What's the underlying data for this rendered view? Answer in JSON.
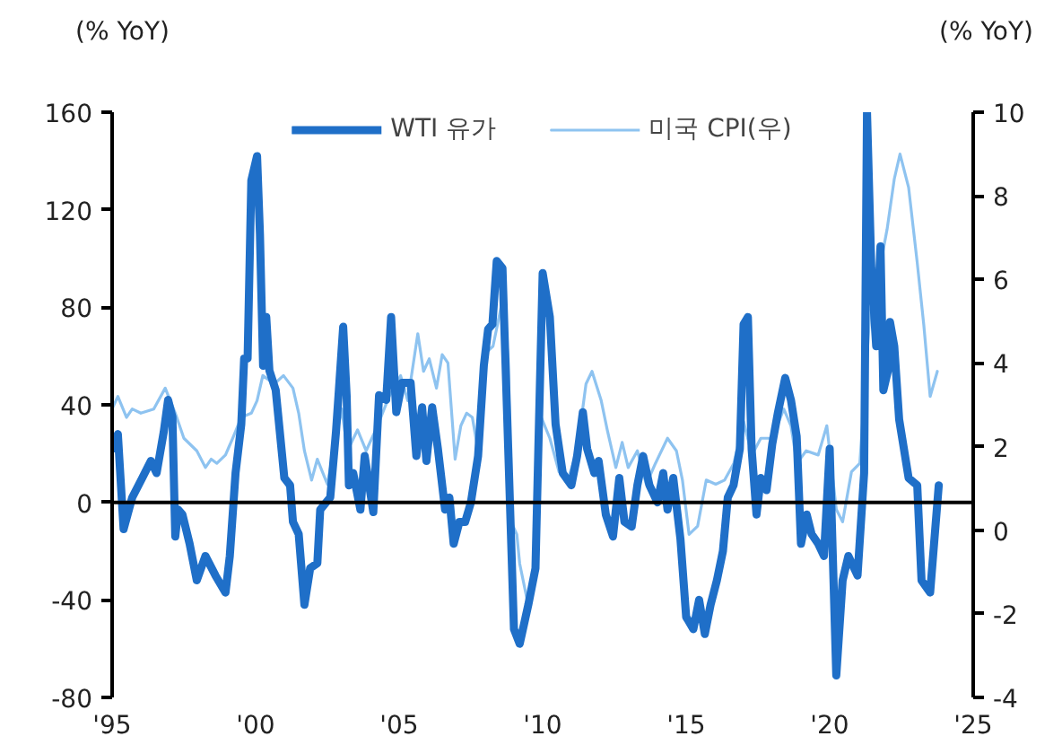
{
  "chart_data": {
    "type": "line",
    "ylabel": "(% YoY)",
    "y2label": "(% YoY)",
    "xlim": [
      1995,
      2025
    ],
    "xticks": [
      {
        "value": 1995,
        "label": "'95"
      },
      {
        "value": 2000,
        "label": "'00"
      },
      {
        "value": 2005,
        "label": "'05"
      },
      {
        "value": 2010,
        "label": "'10"
      },
      {
        "value": 2015,
        "label": "'15"
      },
      {
        "value": 2020,
        "label": "'20"
      },
      {
        "value": 2025,
        "label": "'25"
      }
    ],
    "ylim": [
      -80,
      160
    ],
    "yticks": [
      -80,
      -40,
      0,
      40,
      80,
      120,
      160
    ],
    "y2lim": [
      -4,
      10
    ],
    "y2ticks": [
      -4,
      -2,
      0,
      2,
      4,
      6,
      8,
      10
    ],
    "grid": false,
    "legend": "top",
    "ref_lines": [
      {
        "axis": "y",
        "value": 0,
        "color": "#000000"
      }
    ],
    "series": [
      {
        "name": "WTI 유가",
        "color": "#1f6fc8",
        "x": [
          1995.0,
          1995.2,
          1995.4,
          1995.7,
          1996.05,
          1996.35,
          1996.55,
          1996.8,
          1996.95,
          1997.1,
          1997.2,
          1997.3,
          1997.45,
          1997.7,
          1997.95,
          1998.25,
          1998.6,
          1998.95,
          1999.1,
          1999.3,
          1999.5,
          1999.6,
          1999.72,
          1999.85,
          2000.05,
          2000.15,
          2000.26,
          2000.37,
          2000.48,
          2000.7,
          2001.0,
          2001.2,
          2001.3,
          2001.5,
          2001.7,
          2001.9,
          2002.15,
          2002.25,
          2002.6,
          2002.8,
          2002.9,
          2003.05,
          2003.17,
          2003.25,
          2003.4,
          2003.65,
          2003.8,
          2004.1,
          2004.3,
          2004.55,
          2004.72,
          2004.9,
          2005.1,
          2005.4,
          2005.6,
          2005.8,
          2005.95,
          2006.15,
          2006.35,
          2006.6,
          2006.75,
          2006.9,
          2007.1,
          2007.3,
          2007.5,
          2007.75,
          2007.95,
          2008.1,
          2008.25,
          2008.4,
          2008.6,
          2008.8,
          2009.0,
          2009.2,
          2009.5,
          2009.75,
          2009.85,
          2010.0,
          2010.25,
          2010.45,
          2010.7,
          2011.0,
          2011.2,
          2011.4,
          2011.55,
          2011.8,
          2011.95,
          2012.2,
          2012.45,
          2012.67,
          2012.85,
          2013.1,
          2013.3,
          2013.5,
          2013.72,
          2014.0,
          2014.2,
          2014.35,
          2014.55,
          2014.8,
          2015.0,
          2015.25,
          2015.45,
          2015.65,
          2015.85,
          2016.07,
          2016.28,
          2016.45,
          2016.65,
          2016.87,
          2017.0,
          2017.15,
          2017.28,
          2017.45,
          2017.6,
          2017.8,
          2018.0,
          2018.2,
          2018.45,
          2018.65,
          2018.85,
          2019.0,
          2019.2,
          2019.37,
          2019.6,
          2019.8,
          2020.0,
          2020.23,
          2020.45,
          2020.65,
          2020.97,
          2021.2,
          2021.3,
          2021.45,
          2021.62,
          2021.77,
          2021.87,
          2022.03,
          2022.1,
          2022.25,
          2022.42,
          2022.75,
          2023.05,
          2023.2,
          2023.5,
          2023.8
        ],
        "values": [
          22,
          28,
          -11,
          2,
          10,
          17,
          12,
          29,
          42,
          35,
          -14,
          -3,
          -5,
          -17,
          -32,
          -22,
          -30,
          -37,
          -22,
          12,
          32,
          59,
          59,
          132,
          142,
          110,
          56,
          76,
          54,
          46,
          10,
          7,
          -8,
          -13,
          -42,
          -27,
          -25,
          -3,
          2,
          29,
          46,
          72,
          44,
          7,
          12,
          -3,
          19,
          -4,
          44,
          42,
          76,
          37,
          49,
          49,
          19,
          39,
          17,
          39,
          22,
          -3,
          2,
          -17,
          -8,
          -8,
          0,
          19,
          56,
          71,
          73,
          99,
          96,
          22,
          -52,
          -58,
          -42,
          -27,
          22,
          94,
          76,
          32,
          12,
          7,
          19,
          37,
          22,
          12,
          17,
          -5,
          -14,
          10,
          -8,
          -10,
          7,
          19,
          7,
          0,
          12,
          -3,
          10,
          -15,
          -47,
          -52,
          -40,
          -54,
          -42,
          -32,
          -20,
          2,
          7,
          22,
          73,
          76,
          22,
          -5,
          10,
          5,
          24,
          37,
          51,
          42,
          27,
          -17,
          -5,
          -13,
          -17,
          -22,
          22,
          -71,
          -32,
          -22,
          -30,
          12,
          160,
          96,
          64,
          105,
          46,
          54,
          74,
          64,
          34,
          10,
          7,
          -32,
          -37,
          7
        ]
      },
      {
        "name": "미국 CPI(우)",
        "color": "#8ec3f0",
        "axis": "y2",
        "x": [
          1995.0,
          1995.2,
          1995.5,
          1995.7,
          1996.0,
          1996.45,
          1996.85,
          1997.2,
          1997.5,
          1997.95,
          1998.25,
          1998.45,
          1998.65,
          1998.95,
          1999.2,
          1999.5,
          1999.85,
          2000.05,
          2000.25,
          2000.65,
          2000.97,
          2001.3,
          2001.5,
          2001.7,
          2001.95,
          2002.15,
          2002.5,
          2002.8,
          2003.0,
          2003.2,
          2003.55,
          2003.85,
          2004.25,
          2004.65,
          2005.05,
          2005.3,
          2005.65,
          2005.85,
          2006.05,
          2006.3,
          2006.5,
          2006.7,
          2006.95,
          2007.15,
          2007.35,
          2007.55,
          2007.75,
          2007.95,
          2008.27,
          2008.6,
          2008.8,
          2008.9,
          2009.1,
          2009.2,
          2009.5,
          2009.7,
          2009.95,
          2010.25,
          2010.57,
          2010.88,
          2011.2,
          2011.51,
          2011.72,
          2012.04,
          2012.25,
          2012.55,
          2012.77,
          2012.98,
          2013.3,
          2013.61,
          2013.93,
          2014.35,
          2014.66,
          2014.87,
          2015.1,
          2015.4,
          2015.7,
          2016.03,
          2016.34,
          2016.66,
          2017.0,
          2017.29,
          2017.6,
          2018.0,
          2018.4,
          2018.65,
          2018.86,
          2019.18,
          2019.6,
          2019.9,
          2020.23,
          2020.45,
          2020.76,
          2021.05,
          2021.4,
          2021.7,
          2022.0,
          2022.25,
          2022.45,
          2022.75,
          2023.05,
          2023.28,
          2023.5,
          2023.75
        ],
        "values": [
          2.9,
          3.2,
          2.7,
          2.9,
          2.8,
          2.9,
          3.4,
          2.8,
          2.2,
          1.9,
          1.5,
          1.7,
          1.6,
          1.8,
          2.2,
          2.7,
          2.8,
          3.1,
          3.7,
          3.5,
          3.7,
          3.4,
          2.8,
          1.9,
          1.2,
          1.7,
          1.1,
          2.2,
          2.9,
          1.9,
          2.4,
          1.9,
          2.5,
          3.2,
          3.7,
          3.1,
          4.7,
          3.8,
          4.1,
          3.4,
          4.2,
          4.0,
          1.7,
          2.5,
          2.8,
          2.7,
          1.9,
          4.2,
          4.4,
          5.5,
          4.1,
          0.2,
          -0.1,
          -0.8,
          -1.8,
          -1.1,
          2.7,
          2.2,
          1.4,
          1.2,
          1.9,
          3.5,
          3.8,
          3.1,
          2.4,
          1.5,
          2.1,
          1.5,
          1.9,
          1.1,
          1.6,
          2.2,
          1.9,
          1.2,
          -0.1,
          0.1,
          1.2,
          1.1,
          1.2,
          1.6,
          2.6,
          1.8,
          2.2,
          2.2,
          2.9,
          2.5,
          1.6,
          1.9,
          1.8,
          2.5,
          0.5,
          0.2,
          1.4,
          1.6,
          5.2,
          6.1,
          7.2,
          8.4,
          9.0,
          8.2,
          6.4,
          4.9,
          3.2,
          3.8
        ]
      }
    ]
  }
}
